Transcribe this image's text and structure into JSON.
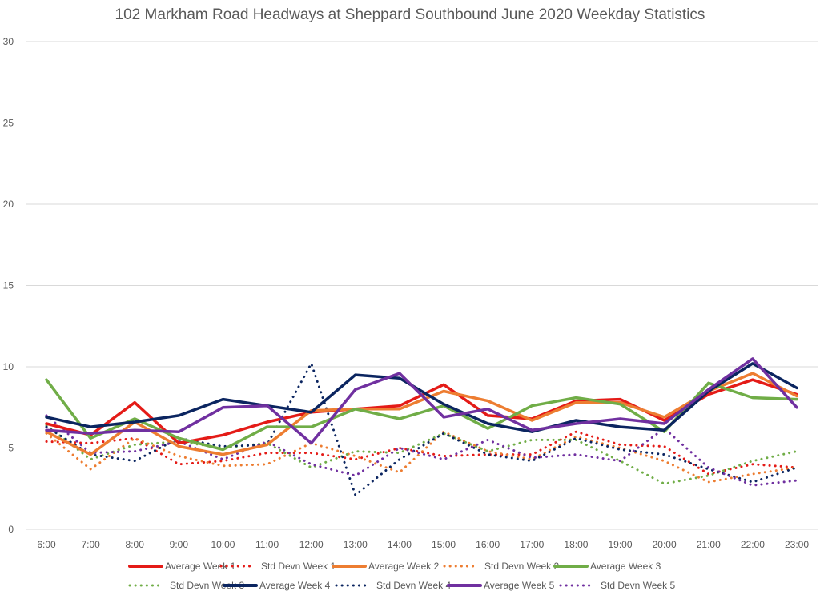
{
  "chart_data": {
    "type": "line",
    "title": "102 Markham Road Headways at Sheppard Southbound June 2020 Weekday Statistics",
    "xlabel": "",
    "ylabel": "",
    "ylim": [
      0,
      30
    ],
    "yticks": [
      0,
      5,
      10,
      15,
      20,
      25,
      30
    ],
    "grid": true,
    "legend_position": "bottom",
    "categories": [
      "6:00",
      "7:00",
      "8:00",
      "9:00",
      "10:00",
      "11:00",
      "12:00",
      "13:00",
      "14:00",
      "15:00",
      "16:00",
      "17:00",
      "18:00",
      "19:00",
      "20:00",
      "21:00",
      "22:00",
      "23:00"
    ],
    "series": [
      {
        "name": "Average Week 1",
        "color": "#e41b17",
        "style": "solid",
        "values": [
          6.5,
          5.8,
          7.8,
          5.3,
          5.8,
          6.6,
          7.2,
          7.4,
          7.6,
          8.9,
          7.0,
          6.8,
          7.9,
          8.0,
          6.7,
          8.3,
          9.2,
          8.3
        ]
      },
      {
        "name": "Std Devn Week 1",
        "color": "#e41b17",
        "style": "dotted",
        "values": [
          5.4,
          5.3,
          5.6,
          4.0,
          4.2,
          4.7,
          4.7,
          4.3,
          5.0,
          4.5,
          4.6,
          4.6,
          6.0,
          5.2,
          5.1,
          3.4,
          4.0,
          3.8
        ]
      },
      {
        "name": "Average Week 2",
        "color": "#ed7d31",
        "style": "solid",
        "values": [
          6.0,
          4.6,
          6.6,
          5.1,
          4.6,
          5.2,
          7.3,
          7.4,
          7.4,
          8.5,
          7.9,
          6.7,
          7.8,
          7.8,
          6.9,
          8.5,
          9.6,
          8.2
        ]
      },
      {
        "name": "Std Devn Week 2",
        "color": "#ed7d31",
        "style": "dotted",
        "values": [
          5.9,
          3.7,
          5.6,
          4.5,
          3.9,
          4.0,
          5.3,
          4.5,
          3.5,
          6.0,
          4.8,
          4.3,
          5.7,
          5.0,
          4.2,
          2.9,
          3.4,
          3.8
        ]
      },
      {
        "name": "Average Week 3",
        "color": "#70ad47",
        "style": "solid",
        "values": [
          9.2,
          5.6,
          6.8,
          5.6,
          4.9,
          6.3,
          6.3,
          7.4,
          6.8,
          7.6,
          6.2,
          7.6,
          8.1,
          7.7,
          6.0,
          9.0,
          8.1,
          8.0
        ]
      },
      {
        "name": "Std Devn Week 3",
        "color": "#70ad47",
        "style": "dotted",
        "values": [
          6.4,
          4.3,
          5.2,
          5.4,
          5.0,
          5.3,
          3.8,
          4.8,
          4.7,
          5.9,
          4.8,
          5.5,
          5.5,
          4.2,
          2.8,
          3.3,
          4.2,
          4.8
        ]
      },
      {
        "name": "Average Week 4",
        "color": "#0b2560",
        "style": "solid",
        "values": [
          6.9,
          6.3,
          6.6,
          7.0,
          8.0,
          7.6,
          7.2,
          9.5,
          9.3,
          7.7,
          6.5,
          6.0,
          6.7,
          6.3,
          6.1,
          8.5,
          10.2,
          8.7
        ]
      },
      {
        "name": "Std Devn Week 4",
        "color": "#0b2560",
        "style": "dotted",
        "values": [
          6.3,
          4.6,
          4.2,
          5.6,
          5.1,
          5.2,
          10.2,
          2.1,
          4.3,
          5.9,
          4.6,
          4.2,
          5.6,
          4.9,
          4.6,
          3.7,
          2.9,
          3.8
        ]
      },
      {
        "name": "Average Week 5",
        "color": "#7030a0",
        "style": "solid",
        "values": [
          6.1,
          5.9,
          6.1,
          6.0,
          7.5,
          7.6,
          5.3,
          8.6,
          9.6,
          6.9,
          7.4,
          6.1,
          6.5,
          6.8,
          6.5,
          8.6,
          10.5,
          7.5
        ]
      },
      {
        "name": "Std Devn Week 5",
        "color": "#7030a0",
        "style": "dotted",
        "values": [
          7.0,
          4.7,
          4.8,
          5.4,
          4.3,
          5.4,
          4.0,
          3.3,
          5.0,
          4.3,
          5.5,
          4.4,
          4.6,
          4.2,
          6.2,
          3.8,
          2.7,
          3.0
        ]
      }
    ]
  }
}
